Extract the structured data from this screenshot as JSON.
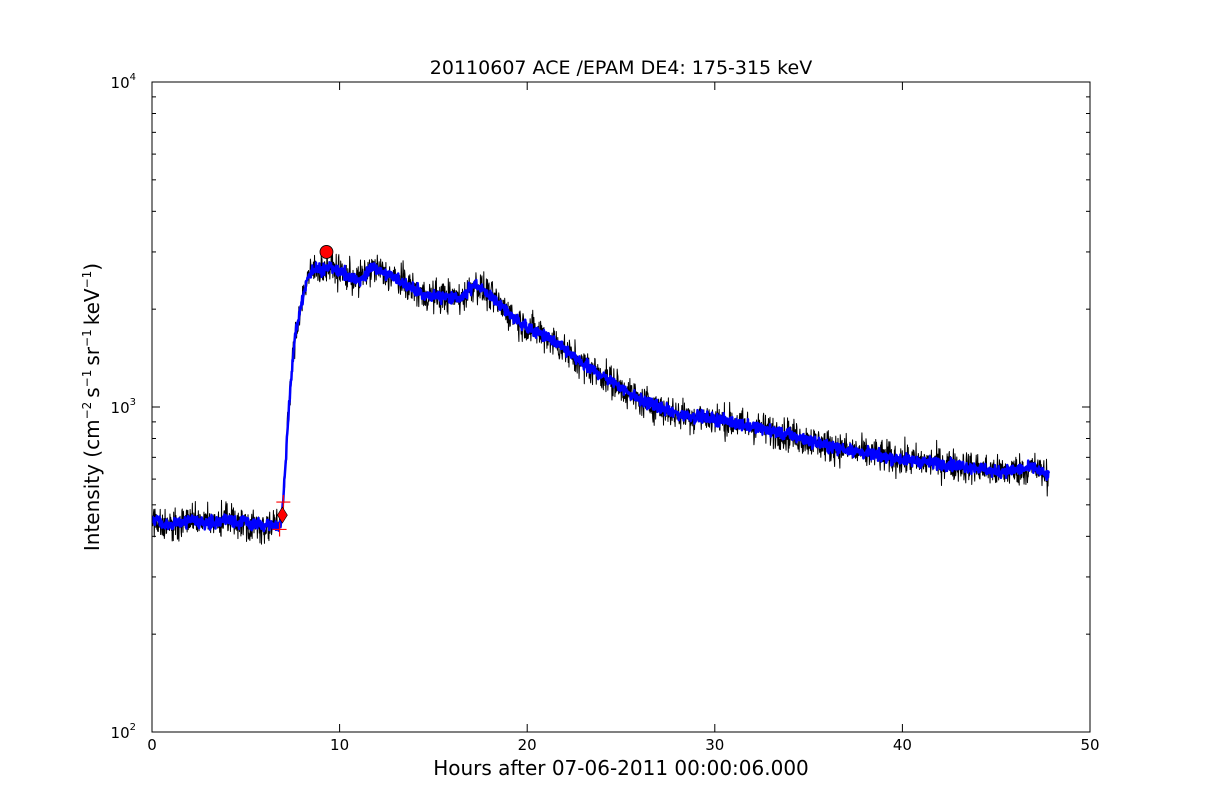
{
  "chart_data": {
    "type": "line",
    "title": "20110607 ACE /EPAM DE4: 175-315 keV",
    "xlabel": "Hours after 07-06-2011 00:00:06.000",
    "ylabel": {
      "prefix": "Intensity (cm",
      "e1": "−2",
      "p2": "s",
      "e2": "−1",
      "p3": "sr",
      "e3": "−1",
      "p4": "keV",
      "e4": "−1",
      "suffix": ")"
    },
    "xlim": [
      0,
      50
    ],
    "ylim": [
      100,
      10000
    ],
    "yscale": "log",
    "x_ticks": [
      "0",
      "10",
      "20",
      "30",
      "40",
      "50"
    ],
    "y_ticks": [
      {
        "base": "10",
        "exp": "2"
      },
      {
        "base": "10",
        "exp": "3"
      },
      {
        "base": "10",
        "exp": "4"
      }
    ],
    "grid": false,
    "series": [
      {
        "color": "#000000",
        "style": "raw",
        "x": [
          0,
          1,
          2,
          3,
          4,
          5,
          6,
          6.7,
          6.9,
          7.0,
          7.2,
          7.4,
          7.6,
          7.8,
          8.0,
          8.3,
          8.6,
          9.0,
          9.5,
          10.0,
          11.0,
          11.8,
          12.5,
          13.5,
          14.5,
          15.5,
          16.5,
          17.2,
          18.0,
          19.0,
          20.0,
          21.0,
          22.0,
          23.0,
          24.0,
          25.0,
          26.0,
          27.0,
          28.0,
          30.0,
          32.0,
          34.0,
          36.0,
          38.0,
          40.0,
          42.0,
          44.0,
          45.0,
          46.0,
          47.0,
          47.8
        ],
        "y": [
          450,
          430,
          450,
          440,
          450,
          440,
          430,
          430,
          450,
          520,
          800,
          1200,
          1600,
          1850,
          2150,
          2500,
          2650,
          2650,
          2700,
          2600,
          2450,
          2700,
          2550,
          2400,
          2200,
          2200,
          2150,
          2400,
          2200,
          1950,
          1750,
          1650,
          1500,
          1350,
          1250,
          1150,
          1050,
          1000,
          950,
          920,
          870,
          820,
          760,
          720,
          690,
          670,
          650,
          630,
          640,
          650,
          610
        ]
      },
      {
        "color": "#0000ff",
        "style": "smoothed",
        "x": [
          0,
          1,
          2,
          3,
          4,
          5,
          6,
          6.7,
          6.9,
          7.0,
          7.2,
          7.4,
          7.6,
          7.8,
          8.0,
          8.3,
          8.6,
          9.0,
          9.5,
          10.0,
          11.0,
          11.8,
          12.5,
          13.5,
          14.5,
          15.5,
          16.5,
          17.2,
          18.0,
          19.0,
          20.0,
          21.0,
          22.0,
          23.0,
          24.0,
          25.0,
          26.0,
          27.0,
          28.0,
          30.0,
          32.0,
          34.0,
          36.0,
          38.0,
          40.0,
          42.0,
          44.0,
          45.0,
          46.0,
          47.0,
          47.8
        ],
        "y": [
          450,
          430,
          450,
          440,
          450,
          440,
          430,
          430,
          450,
          520,
          800,
          1200,
          1600,
          1850,
          2150,
          2500,
          2650,
          2650,
          2700,
          2600,
          2450,
          2700,
          2550,
          2400,
          2200,
          2200,
          2150,
          2400,
          2200,
          1950,
          1750,
          1650,
          1500,
          1350,
          1250,
          1150,
          1050,
          1000,
          950,
          920,
          870,
          820,
          760,
          720,
          690,
          670,
          650,
          630,
          640,
          650,
          610
        ]
      }
    ],
    "markers": [
      {
        "type": "plus",
        "color": "#ff0000",
        "x": 7.0,
        "y": 510
      },
      {
        "type": "plus",
        "color": "#ff0000",
        "x": 6.8,
        "y": 420
      },
      {
        "type": "diamond",
        "color": "#ff0000",
        "x": 6.95,
        "y": 465
      },
      {
        "type": "circle",
        "color": "#ff0000",
        "x": 9.3,
        "y": 3000
      }
    ]
  }
}
